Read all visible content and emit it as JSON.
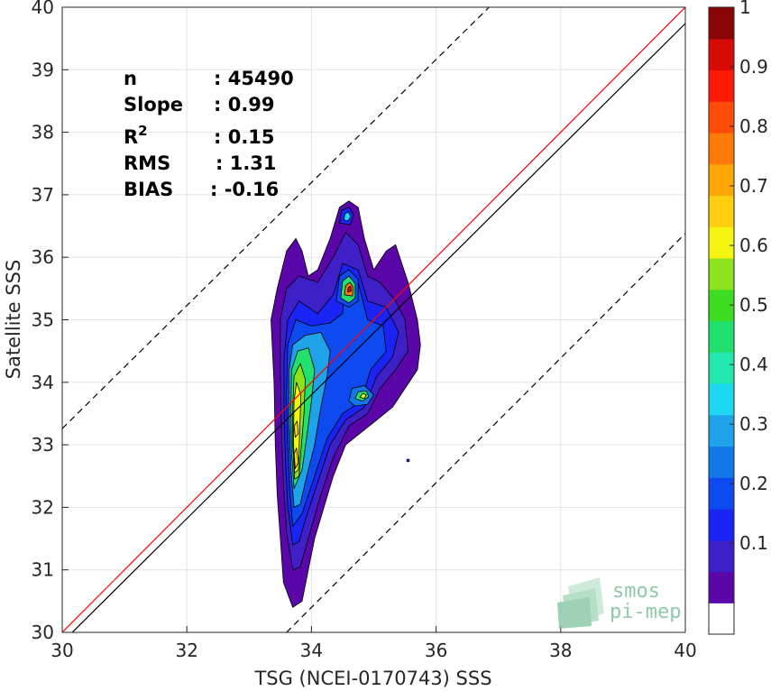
{
  "chart_data": {
    "type": "contour",
    "xlabel": "TSG (NCEI-0170743) SSS",
    "ylabel": "Satellite SSS",
    "xlim": [
      30,
      40
    ],
    "ylim": [
      30,
      40
    ],
    "x_ticks": [
      "30",
      "32",
      "34",
      "36",
      "38",
      "40"
    ],
    "y_ticks": [
      "30",
      "31",
      "32",
      "33",
      "34",
      "35",
      "36",
      "37",
      "38",
      "39",
      "40"
    ],
    "grid": true,
    "stats": [
      {
        "label": "n",
        "value": ": 45490"
      },
      {
        "label": "Slope",
        "value": ": 0.99"
      },
      {
        "label": "R",
        "sup": "2",
        "value": ": 0.15"
      },
      {
        "label": "RMS",
        "value": ": 1.31"
      },
      {
        "label": "BIAS",
        "value": ": -0.16"
      }
    ],
    "lines": [
      {
        "name": "one-to-one",
        "color": "#ff0000",
        "x": [
          30,
          40
        ],
        "y": [
          30,
          40
        ]
      },
      {
        "name": "regression",
        "color": "#000000",
        "x": [
          30,
          40
        ],
        "y": [
          29.84,
          39.74
        ]
      },
      {
        "name": "upper-bound",
        "color": "#000000",
        "dash": true,
        "x": [
          30,
          36.85
        ],
        "y": [
          33.26,
          40
        ]
      },
      {
        "name": "lower-bound",
        "color": "#000000",
        "dash": true,
        "x": [
          33.6,
          40
        ],
        "y": [
          30,
          36.38
        ]
      }
    ],
    "contour_centers": [
      {
        "x": 33.75,
        "y": 32.7
      },
      {
        "x": 33.75,
        "y": 33.2
      },
      {
        "x": 33.75,
        "y": 34.0
      },
      {
        "x": 34.6,
        "y": 35.48
      },
      {
        "x": 34.8,
        "y": 33.78
      },
      {
        "x": 34.55,
        "y": 36.65
      }
    ],
    "colorbar": {
      "range": [
        0,
        1
      ],
      "ticks": [
        "0.1",
        "0.2",
        "0.3",
        "0.4",
        "0.5",
        "0.6",
        "0.7",
        "0.8",
        "0.9",
        "1"
      ],
      "colors": [
        "#ffffff",
        "#5a06a8",
        "#3f1fc8",
        "#1a24f4",
        "#0d4bf0",
        "#1278ea",
        "#1fa3e8",
        "#1ed8f2",
        "#22e8b0",
        "#22e06e",
        "#3cdc22",
        "#8ee21c",
        "#f4f410",
        "#ffd010",
        "#ffa808",
        "#ff7a08",
        "#ff4d08",
        "#ff1a08",
        "#d80a06",
        "#8a0606"
      ]
    }
  },
  "logo": {
    "line1": "smos",
    "line2": "pi-mep"
  }
}
